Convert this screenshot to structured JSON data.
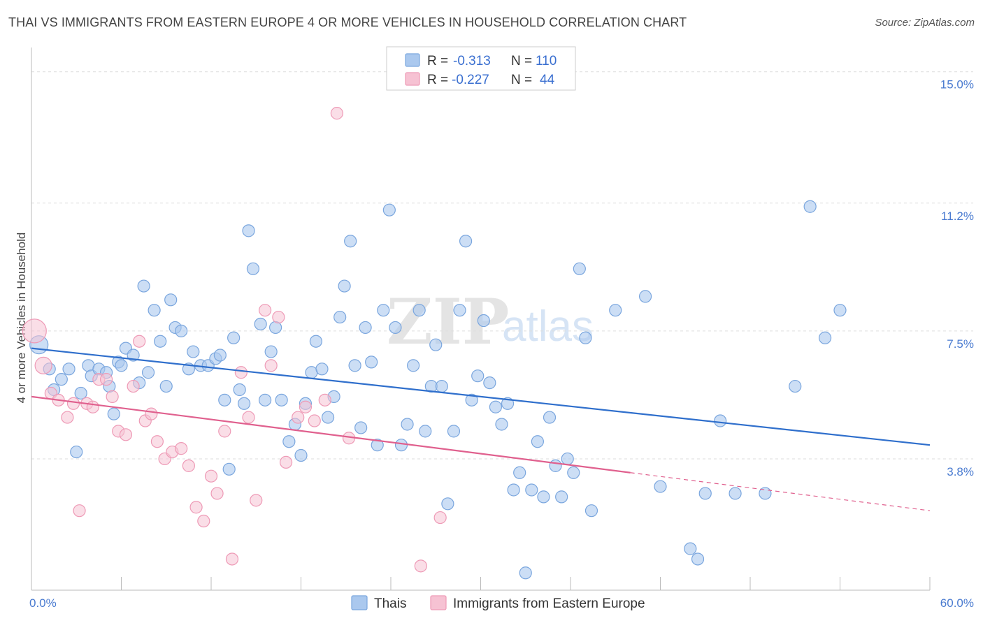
{
  "title": "THAI VS IMMIGRANTS FROM EASTERN EUROPE 4 OR MORE VEHICLES IN HOUSEHOLD CORRELATION CHART",
  "source": "Source: ZipAtlas.com",
  "watermark": {
    "zip": "ZIP",
    "atlas": "atlas"
  },
  "colors": {
    "thai_fill": "#aac8ee",
    "thai_stroke": "#7aa6de",
    "thai_line": "#2f6fcc",
    "imm_fill": "#f6c2d3",
    "imm_stroke": "#ee9ab6",
    "imm_line": "#e0608e",
    "grid": "#dddddd",
    "tick_label": "#4a7bd0"
  },
  "legend": {
    "thai": {
      "r_label": "R =",
      "r_value": "-0.313",
      "n_label": "N =",
      "n_value": "110"
    },
    "imm": {
      "r_label": "R =",
      "r_value": "-0.227",
      "n_label": "N =",
      "n_value": "44"
    }
  },
  "chart_data": {
    "type": "scatter",
    "title": "THAI VS IMMIGRANTS FROM EASTERN EUROPE 4 OR MORE VEHICLES IN HOUSEHOLD CORRELATION CHART",
    "xlabel": "",
    "ylabel": "4 or more Vehicles in Household",
    "xlim": [
      0,
      60
    ],
    "ylim": [
      0,
      15.5
    ],
    "x_tick_labels": [
      "0.0%",
      "60.0%"
    ],
    "y_ticks": [
      3.8,
      7.5,
      11.2,
      15.0
    ],
    "y_tick_labels": [
      "3.8%",
      "7.5%",
      "11.2%",
      "15.0%"
    ],
    "grid": true,
    "legend_position": "top-center",
    "series": [
      {
        "name": "Thais",
        "color": "#aac8ee",
        "trend": {
          "x": [
            0,
            60
          ],
          "y": [
            7.0,
            4.2
          ],
          "style": "solid"
        },
        "points": [
          [
            0.5,
            7.1
          ],
          [
            1.2,
            6.4
          ],
          [
            1.5,
            5.8
          ],
          [
            2.0,
            6.1
          ],
          [
            2.5,
            6.4
          ],
          [
            3.0,
            4.0
          ],
          [
            3.3,
            5.7
          ],
          [
            3.8,
            6.5
          ],
          [
            4.0,
            6.2
          ],
          [
            4.5,
            6.4
          ],
          [
            5.0,
            6.3
          ],
          [
            5.2,
            5.9
          ],
          [
            5.5,
            5.1
          ],
          [
            5.8,
            6.6
          ],
          [
            6.0,
            6.5
          ],
          [
            6.3,
            7.0
          ],
          [
            6.8,
            6.8
          ],
          [
            7.2,
            6.0
          ],
          [
            7.5,
            8.8
          ],
          [
            7.8,
            6.3
          ],
          [
            8.2,
            8.1
          ],
          [
            8.6,
            7.2
          ],
          [
            9.0,
            5.9
          ],
          [
            9.3,
            8.4
          ],
          [
            9.6,
            7.6
          ],
          [
            10.0,
            7.5
          ],
          [
            10.5,
            6.4
          ],
          [
            10.8,
            6.9
          ],
          [
            11.3,
            6.5
          ],
          [
            11.8,
            6.5
          ],
          [
            12.3,
            6.7
          ],
          [
            12.6,
            6.8
          ],
          [
            12.9,
            5.5
          ],
          [
            13.2,
            3.5
          ],
          [
            13.5,
            7.3
          ],
          [
            13.9,
            5.8
          ],
          [
            14.2,
            5.4
          ],
          [
            14.5,
            10.4
          ],
          [
            14.8,
            9.3
          ],
          [
            15.3,
            7.7
          ],
          [
            15.6,
            5.5
          ],
          [
            16.0,
            6.9
          ],
          [
            16.3,
            7.6
          ],
          [
            16.7,
            5.5
          ],
          [
            17.2,
            4.3
          ],
          [
            17.6,
            4.8
          ],
          [
            18.0,
            3.9
          ],
          [
            18.3,
            5.4
          ],
          [
            18.7,
            6.3
          ],
          [
            19.0,
            7.2
          ],
          [
            19.4,
            6.4
          ],
          [
            19.8,
            5.0
          ],
          [
            20.2,
            5.6
          ],
          [
            20.6,
            7.9
          ],
          [
            20.9,
            8.8
          ],
          [
            21.3,
            10.1
          ],
          [
            21.6,
            6.5
          ],
          [
            22.0,
            4.7
          ],
          [
            22.3,
            7.6
          ],
          [
            22.7,
            6.6
          ],
          [
            23.1,
            4.2
          ],
          [
            23.5,
            8.1
          ],
          [
            23.9,
            11.0
          ],
          [
            24.3,
            7.6
          ],
          [
            24.7,
            4.2
          ],
          [
            25.1,
            4.8
          ],
          [
            25.5,
            6.5
          ],
          [
            25.9,
            8.1
          ],
          [
            26.3,
            4.6
          ],
          [
            26.7,
            5.9
          ],
          [
            27.0,
            7.1
          ],
          [
            27.4,
            5.9
          ],
          [
            27.8,
            2.5
          ],
          [
            28.2,
            4.6
          ],
          [
            28.6,
            8.1
          ],
          [
            29.0,
            10.1
          ],
          [
            29.4,
            5.5
          ],
          [
            29.8,
            6.2
          ],
          [
            30.2,
            7.8
          ],
          [
            30.6,
            6.0
          ],
          [
            31.0,
            5.3
          ],
          [
            31.4,
            4.8
          ],
          [
            31.8,
            5.4
          ],
          [
            32.2,
            2.9
          ],
          [
            32.6,
            3.4
          ],
          [
            33.0,
            0.5
          ],
          [
            33.4,
            2.9
          ],
          [
            33.8,
            4.3
          ],
          [
            34.2,
            2.7
          ],
          [
            34.6,
            5.0
          ],
          [
            35.0,
            3.6
          ],
          [
            35.4,
            2.7
          ],
          [
            35.8,
            3.8
          ],
          [
            36.2,
            3.4
          ],
          [
            36.6,
            9.3
          ],
          [
            37.0,
            7.3
          ],
          [
            37.4,
            2.3
          ],
          [
            39.0,
            8.1
          ],
          [
            41.0,
            8.5
          ],
          [
            42.0,
            3.0
          ],
          [
            44.0,
            1.2
          ],
          [
            44.5,
            0.9
          ],
          [
            45.0,
            2.8
          ],
          [
            46.0,
            4.9
          ],
          [
            47.0,
            2.8
          ],
          [
            49.0,
            2.8
          ],
          [
            51.0,
            5.9
          ],
          [
            52.0,
            11.1
          ],
          [
            53.0,
            7.3
          ],
          [
            54.0,
            8.1
          ]
        ]
      },
      {
        "name": "Immigrants from Eastern Europe",
        "color": "#f6c2d3",
        "trend": {
          "x": [
            0,
            40
          ],
          "y": [
            5.6,
            3.4
          ],
          "style": "solid"
        },
        "trend_extension": {
          "x": [
            40,
            60
          ],
          "y": [
            3.4,
            2.3
          ],
          "style": "dashed"
        },
        "points": [
          [
            0.2,
            7.5
          ],
          [
            0.8,
            6.5
          ],
          [
            1.3,
            5.7
          ],
          [
            1.8,
            5.5
          ],
          [
            2.4,
            5.0
          ],
          [
            2.8,
            5.4
          ],
          [
            3.2,
            2.3
          ],
          [
            3.7,
            5.4
          ],
          [
            4.1,
            5.3
          ],
          [
            4.5,
            6.1
          ],
          [
            5.0,
            6.1
          ],
          [
            5.4,
            5.6
          ],
          [
            5.8,
            4.6
          ],
          [
            6.3,
            4.5
          ],
          [
            6.8,
            5.9
          ],
          [
            7.2,
            7.2
          ],
          [
            7.6,
            4.9
          ],
          [
            8.0,
            5.1
          ],
          [
            8.4,
            4.3
          ],
          [
            8.9,
            3.8
          ],
          [
            9.4,
            4.0
          ],
          [
            10.0,
            4.1
          ],
          [
            10.5,
            3.6
          ],
          [
            11.0,
            2.4
          ],
          [
            11.5,
            2.0
          ],
          [
            12.0,
            3.3
          ],
          [
            12.4,
            2.8
          ],
          [
            12.9,
            4.6
          ],
          [
            13.4,
            0.9
          ],
          [
            14.0,
            6.3
          ],
          [
            14.5,
            5.0
          ],
          [
            15.0,
            2.6
          ],
          [
            15.6,
            8.1
          ],
          [
            16.0,
            6.5
          ],
          [
            16.5,
            7.9
          ],
          [
            17.0,
            3.7
          ],
          [
            17.8,
            5.0
          ],
          [
            18.3,
            5.3
          ],
          [
            18.9,
            4.9
          ],
          [
            19.6,
            5.5
          ],
          [
            20.4,
            13.8
          ],
          [
            21.2,
            4.4
          ],
          [
            26.0,
            0.7
          ],
          [
            27.3,
            2.1
          ]
        ]
      }
    ]
  },
  "bottom_legend": [
    {
      "label": "Thais"
    },
    {
      "label": "Immigrants from Eastern Europe"
    }
  ]
}
